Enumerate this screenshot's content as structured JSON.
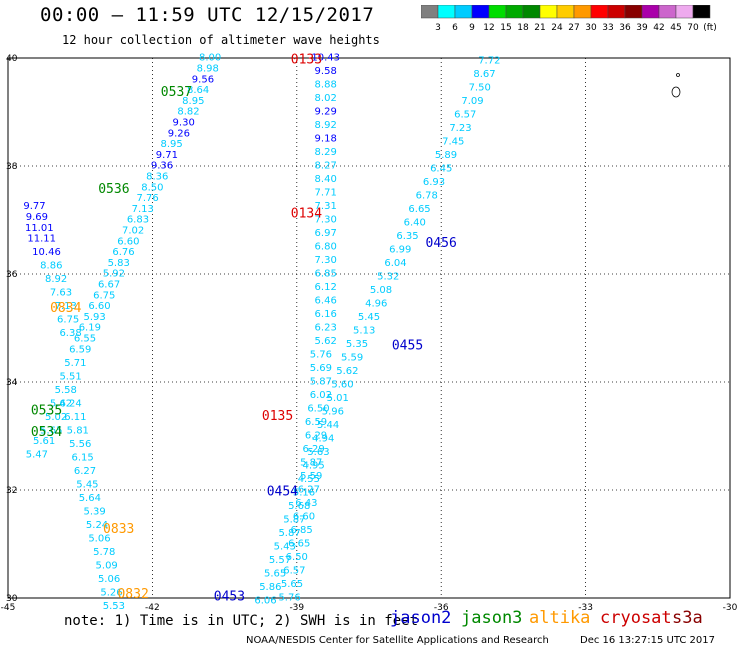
{
  "title": "00:00 – 11:59 UTC 12/15/2017",
  "subtitle": "12 hour collection of altimeter wave heights",
  "note": "note: 1) Time is in UTC; 2) SWH is in feet",
  "credit": "NOAA/NESDIS Center for Satellite Applications and Research",
  "timestamp": "Dec 16 13:27:15 UTC 2017",
  "satellites": [
    {
      "name": "jason2",
      "color": "#0000cc"
    },
    {
      "name": "jason3",
      "color": "#008800"
    },
    {
      "name": "altika",
      "color": "#ff9900"
    },
    {
      "name": "cryosat",
      "color": "#cc0000"
    },
    {
      "name": "s3a",
      "color": "#880000"
    }
  ],
  "legend": {
    "colors": [
      "#808080",
      "#00ffff",
      "#00ccff",
      "#0000ff",
      "#00dd00",
      "#00aa00",
      "#008800",
      "#ffff00",
      "#ffcc00",
      "#ff9900",
      "#ff0000",
      "#cc0000",
      "#880000",
      "#aa00aa",
      "#cc66cc",
      "#eeaaee",
      "#000000"
    ],
    "labels": [
      "3",
      "6",
      "9",
      "12",
      "15",
      "18",
      "21",
      "24",
      "27",
      "30",
      "33",
      "36",
      "39",
      "42",
      "45",
      "70",
      "(ft)"
    ]
  },
  "chart_data": {
    "type": "scatter",
    "xlim": [
      -45,
      -30
    ],
    "ylim": [
      30,
      40
    ],
    "xticks": [
      "-45",
      "-42",
      "-39",
      "-36",
      "-33",
      "-30"
    ],
    "yticks": [
      "30",
      "32",
      "34",
      "36",
      "38",
      "40"
    ],
    "grid": true,
    "legend_position": "top-right",
    "tracks": [
      {
        "label": "0133",
        "lon": -38.8,
        "lat": 39.9,
        "satellite": "cryosat",
        "label_color": "#dd0000"
      },
      {
        "label": "0134",
        "lon": -38.8,
        "lat": 37.05,
        "satellite": "cryosat",
        "label_color": "#dd0000"
      },
      {
        "label": "0135",
        "lon": -39.4,
        "lat": 33.3,
        "satellite": "cryosat",
        "label_color": "#dd0000"
      },
      {
        "label": "0537",
        "lon": -41.5,
        "lat": 39.3,
        "satellite": "jason3",
        "label_color": "#008800"
      },
      {
        "label": "0536",
        "lon": -42.8,
        "lat": 37.5,
        "satellite": "jason3",
        "label_color": "#008800"
      },
      {
        "label": "0535",
        "lon": -44.2,
        "lat": 33.4,
        "satellite": "jason3",
        "label_color": "#008800"
      },
      {
        "label": "0534",
        "lon": -44.2,
        "lat": 33.0,
        "satellite": "jason3",
        "label_color": "#008800"
      },
      {
        "label": "0834",
        "lon": -43.8,
        "lat": 35.3,
        "satellite": "altika",
        "label_color": "#ff9900"
      },
      {
        "label": "0833",
        "lon": -42.7,
        "lat": 31.2,
        "satellite": "altika",
        "label_color": "#ff9900"
      },
      {
        "label": "0832",
        "lon": -42.4,
        "lat": 30.0,
        "satellite": "altika",
        "label_color": "#ff9900"
      },
      {
        "label": "0456",
        "lon": -36.0,
        "lat": 36.5,
        "satellite": "jason2",
        "label_color": "#0000cc"
      },
      {
        "label": "0455",
        "lon": -36.7,
        "lat": 34.6,
        "satellite": "jason2",
        "label_color": "#0000cc"
      },
      {
        "label": "0454",
        "lon": -39.3,
        "lat": 31.9,
        "satellite": "jason2",
        "label_color": "#0000cc"
      },
      {
        "label": "0453",
        "lon": -40.4,
        "lat": 29.95,
        "satellite": "jason2",
        "label_color": "#0000cc"
      }
    ],
    "points": [
      {
        "lon": -38.4,
        "lat": 39.95,
        "v": "10.43",
        "c": "#0000ff"
      },
      {
        "lon": -38.4,
        "lat": 39.7,
        "v": "9.58",
        "c": "#0000ff"
      },
      {
        "lon": -38.4,
        "lat": 39.45,
        "v": "8.88",
        "c": "#00ccff"
      },
      {
        "lon": -38.4,
        "lat": 39.2,
        "v": "8.02",
        "c": "#00ccff"
      },
      {
        "lon": -38.4,
        "lat": 38.95,
        "v": "9.29",
        "c": "#0000ff"
      },
      {
        "lon": -38.4,
        "lat": 38.7,
        "v": "8.92",
        "c": "#00ccff"
      },
      {
        "lon": -38.4,
        "lat": 38.45,
        "v": "9.18",
        "c": "#0000ff"
      },
      {
        "lon": -38.4,
        "lat": 38.2,
        "v": "8.29",
        "c": "#00ccff"
      },
      {
        "lon": -38.4,
        "lat": 37.95,
        "v": "8.27",
        "c": "#00ccff"
      },
      {
        "lon": -38.4,
        "lat": 37.7,
        "v": "8.40",
        "c": "#00ccff"
      },
      {
        "lon": -38.4,
        "lat": 37.45,
        "v": "7.71",
        "c": "#00ccff"
      },
      {
        "lon": -38.4,
        "lat": 37.2,
        "v": "7.31",
        "c": "#00ccff"
      },
      {
        "lon": -38.4,
        "lat": 36.95,
        "v": "7.30",
        "c": "#00ccff"
      },
      {
        "lon": -38.4,
        "lat": 36.7,
        "v": "6.97",
        "c": "#00ccff"
      },
      {
        "lon": -38.4,
        "lat": 36.45,
        "v": "6.80",
        "c": "#00ccff"
      },
      {
        "lon": -38.4,
        "lat": 36.2,
        "v": "7.30",
        "c": "#00ccff"
      },
      {
        "lon": -38.4,
        "lat": 35.95,
        "v": "6.85",
        "c": "#00ccff"
      },
      {
        "lon": -38.4,
        "lat": 35.7,
        "v": "6.12",
        "c": "#00ccff"
      },
      {
        "lon": -38.4,
        "lat": 35.45,
        "v": "6.46",
        "c": "#00ccff"
      },
      {
        "lon": -38.4,
        "lat": 35.2,
        "v": "6.16",
        "c": "#00ccff"
      },
      {
        "lon": -38.4,
        "lat": 34.95,
        "v": "6.23",
        "c": "#00ccff"
      },
      {
        "lon": -38.4,
        "lat": 34.7,
        "v": "5.62",
        "c": "#00ccff"
      },
      {
        "lon": -38.5,
        "lat": 34.45,
        "v": "5.76",
        "c": "#00ccff"
      },
      {
        "lon": -38.5,
        "lat": 34.2,
        "v": "5.69",
        "c": "#00ccff"
      },
      {
        "lon": -38.5,
        "lat": 33.95,
        "v": "5.87",
        "c": "#00ccff"
      },
      {
        "lon": -38.5,
        "lat": 33.7,
        "v": "6.02",
        "c": "#00ccff"
      },
      {
        "lon": -38.55,
        "lat": 33.45,
        "v": "6.50",
        "c": "#00ccff"
      },
      {
        "lon": -38.6,
        "lat": 33.2,
        "v": "6.59",
        "c": "#00ccff"
      },
      {
        "lon": -38.6,
        "lat": 32.95,
        "v": "6.29",
        "c": "#00ccff"
      },
      {
        "lon": -38.65,
        "lat": 32.7,
        "v": "6.29",
        "c": "#00ccff"
      },
      {
        "lon": -38.7,
        "lat": 32.45,
        "v": "5.87",
        "c": "#00ccff"
      },
      {
        "lon": -38.7,
        "lat": 32.2,
        "v": "5.59",
        "c": "#00ccff"
      },
      {
        "lon": -38.75,
        "lat": 31.95,
        "v": "6.27",
        "c": "#00ccff"
      },
      {
        "lon": -38.8,
        "lat": 31.7,
        "v": "6.43",
        "c": "#00ccff"
      },
      {
        "lon": -38.85,
        "lat": 31.45,
        "v": "6.60",
        "c": "#00ccff"
      },
      {
        "lon": -38.9,
        "lat": 31.2,
        "v": "6.85",
        "c": "#00ccff"
      },
      {
        "lon": -38.95,
        "lat": 30.95,
        "v": "6.65",
        "c": "#00ccff"
      },
      {
        "lon": -39.0,
        "lat": 30.7,
        "v": "6.50",
        "c": "#00ccff"
      },
      {
        "lon": -39.05,
        "lat": 30.45,
        "v": "6.57",
        "c": "#00ccff"
      },
      {
        "lon": -39.1,
        "lat": 30.2,
        "v": "5.65",
        "c": "#00ccff"
      },
      {
        "lon": -39.15,
        "lat": 29.95,
        "v": "5.76",
        "c": "#00ccff"
      },
      {
        "lon": -40.8,
        "lat": 39.95,
        "v": "8.00",
        "c": "#00ccff"
      },
      {
        "lon": -40.85,
        "lat": 39.75,
        "v": "8.98",
        "c": "#00ccff"
      },
      {
        "lon": -40.95,
        "lat": 39.55,
        "v": "9.56",
        "c": "#0000ff"
      },
      {
        "lon": -41.05,
        "lat": 39.35,
        "v": "8.64",
        "c": "#00ccff"
      },
      {
        "lon": -41.15,
        "lat": 39.15,
        "v": "8.95",
        "c": "#00ccff"
      },
      {
        "lon": -41.25,
        "lat": 38.95,
        "v": "8.82",
        "c": "#00ccff"
      },
      {
        "lon": -41.35,
        "lat": 38.75,
        "v": "9.30",
        "c": "#0000ff"
      },
      {
        "lon": -41.45,
        "lat": 38.55,
        "v": "9.26",
        "c": "#0000ff"
      },
      {
        "lon": -41.6,
        "lat": 38.35,
        "v": "8.95",
        "c": "#00ccff"
      },
      {
        "lon": -41.7,
        "lat": 38.15,
        "v": "9.71",
        "c": "#0000ff"
      },
      {
        "lon": -41.8,
        "lat": 37.95,
        "v": "9.36",
        "c": "#0000ff"
      },
      {
        "lon": -41.9,
        "lat": 37.75,
        "v": "8.36",
        "c": "#00ccff"
      },
      {
        "lon": -42.0,
        "lat": 37.55,
        "v": "8.50",
        "c": "#00ccff"
      },
      {
        "lon": -42.1,
        "lat": 37.35,
        "v": "7.76",
        "c": "#00ccff"
      },
      {
        "lon": -42.2,
        "lat": 37.15,
        "v": "7.13",
        "c": "#00ccff"
      },
      {
        "lon": -42.3,
        "lat": 36.95,
        "v": "6.83",
        "c": "#00ccff"
      },
      {
        "lon": -42.4,
        "lat": 36.75,
        "v": "7.02",
        "c": "#00ccff"
      },
      {
        "lon": -42.5,
        "lat": 36.55,
        "v": "6.60",
        "c": "#00ccff"
      },
      {
        "lon": -42.6,
        "lat": 36.35,
        "v": "6.76",
        "c": "#00ccff"
      },
      {
        "lon": -42.7,
        "lat": 36.15,
        "v": "5.83",
        "c": "#00ccff"
      },
      {
        "lon": -42.8,
        "lat": 35.95,
        "v": "5.92",
        "c": "#00ccff"
      },
      {
        "lon": -42.9,
        "lat": 35.75,
        "v": "6.67",
        "c": "#00ccff"
      },
      {
        "lon": -43.0,
        "lat": 35.55,
        "v": "6.75",
        "c": "#00ccff"
      },
      {
        "lon": -43.1,
        "lat": 35.35,
        "v": "6.60",
        "c": "#00ccff"
      },
      {
        "lon": -43.2,
        "lat": 35.15,
        "v": "5.93",
        "c": "#00ccff"
      },
      {
        "lon": -43.3,
        "lat": 34.95,
        "v": "6.19",
        "c": "#00ccff"
      },
      {
        "lon": -43.4,
        "lat": 34.75,
        "v": "6.55",
        "c": "#00ccff"
      },
      {
        "lon": -44.45,
        "lat": 37.2,
        "v": "9.77",
        "c": "#0000ff"
      },
      {
        "lon": -44.4,
        "lat": 37.0,
        "v": "9.69",
        "c": "#0000ff"
      },
      {
        "lon": -44.35,
        "lat": 36.8,
        "v": "11.01",
        "c": "#0000ff"
      },
      {
        "lon": -44.3,
        "lat": 36.6,
        "v": "11.11",
        "c": "#0000ff"
      },
      {
        "lon": -44.2,
        "lat": 36.35,
        "v": "10.46",
        "c": "#0000ff"
      },
      {
        "lon": -44.1,
        "lat": 36.1,
        "v": "8.86",
        "c": "#00ccff"
      },
      {
        "lon": -44.0,
        "lat": 35.85,
        "v": "8.92",
        "c": "#00ccff"
      },
      {
        "lon": -43.9,
        "lat": 35.6,
        "v": "7.63",
        "c": "#00ccff"
      },
      {
        "lon": -43.8,
        "lat": 35.35,
        "v": "7.13",
        "c": "#00ccff"
      },
      {
        "lon": -43.75,
        "lat": 35.1,
        "v": "6.75",
        "c": "#00ccff"
      },
      {
        "lon": -43.7,
        "lat": 34.85,
        "v": "6.38",
        "c": "#00ccff"
      },
      {
        "lon": -43.5,
        "lat": 34.55,
        "v": "6.59",
        "c": "#00ccff"
      },
      {
        "lon": -43.6,
        "lat": 34.3,
        "v": "5.71",
        "c": "#00ccff"
      },
      {
        "lon": -43.7,
        "lat": 34.05,
        "v": "5.51",
        "c": "#00ccff"
      },
      {
        "lon": -43.8,
        "lat": 33.8,
        "v": "5.58",
        "c": "#00ccff"
      },
      {
        "lon": -43.9,
        "lat": 33.55,
        "v": "5.42",
        "c": "#00ccff"
      },
      {
        "lon": -44.0,
        "lat": 33.3,
        "v": "5.02",
        "c": "#00ccff"
      },
      {
        "lon": -44.1,
        "lat": 33.05,
        "v": "5.65",
        "c": "#00ccff"
      },
      {
        "lon": -44.25,
        "lat": 32.85,
        "v": "5.61",
        "c": "#00ccff"
      },
      {
        "lon": -44.4,
        "lat": 32.6,
        "v": "5.47",
        "c": "#00ccff"
      },
      {
        "lon": -43.7,
        "lat": 33.55,
        "v": "6.24",
        "c": "#00ccff"
      },
      {
        "lon": -43.6,
        "lat": 33.3,
        "v": "6.11",
        "c": "#00ccff"
      },
      {
        "lon": -43.55,
        "lat": 33.05,
        "v": "5.81",
        "c": "#00ccff"
      },
      {
        "lon": -43.5,
        "lat": 32.8,
        "v": "5.56",
        "c": "#00ccff"
      },
      {
        "lon": -43.45,
        "lat": 32.55,
        "v": "6.15",
        "c": "#00ccff"
      },
      {
        "lon": -43.4,
        "lat": 32.3,
        "v": "6.27",
        "c": "#00ccff"
      },
      {
        "lon": -43.35,
        "lat": 32.05,
        "v": "5.45",
        "c": "#00ccff"
      },
      {
        "lon": -43.3,
        "lat": 31.8,
        "v": "5.64",
        "c": "#00ccff"
      },
      {
        "lon": -43.2,
        "lat": 31.55,
        "v": "5.39",
        "c": "#00ccff"
      },
      {
        "lon": -43.15,
        "lat": 31.3,
        "v": "5.24",
        "c": "#00ccff"
      },
      {
        "lon": -43.1,
        "lat": 31.05,
        "v": "5.06",
        "c": "#00ccff"
      },
      {
        "lon": -43.0,
        "lat": 30.8,
        "v": "5.78",
        "c": "#00ccff"
      },
      {
        "lon": -42.95,
        "lat": 30.55,
        "v": "5.09",
        "c": "#00ccff"
      },
      {
        "lon": -42.9,
        "lat": 30.3,
        "v": "5.06",
        "c": "#00ccff"
      },
      {
        "lon": -42.85,
        "lat": 30.05,
        "v": "5.26",
        "c": "#00ccff"
      },
      {
        "lon": -42.8,
        "lat": 29.8,
        "v": "5.53",
        "c": "#00ccff"
      },
      {
        "lon": -35.0,
        "lat": 39.9,
        "v": "7.72",
        "c": "#00ccff"
      },
      {
        "lon": -35.1,
        "lat": 39.65,
        "v": "8.67",
        "c": "#00ccff"
      },
      {
        "lon": -35.2,
        "lat": 39.4,
        "v": "7.50",
        "c": "#00ccff"
      },
      {
        "lon": -35.35,
        "lat": 39.15,
        "v": "7.09",
        "c": "#00ccff"
      },
      {
        "lon": -35.5,
        "lat": 38.9,
        "v": "6.57",
        "c": "#00ccff"
      },
      {
        "lon": -35.6,
        "lat": 38.65,
        "v": "7.23",
        "c": "#00ccff"
      },
      {
        "lon": -35.75,
        "lat": 38.4,
        "v": "7.45",
        "c": "#00ccff"
      },
      {
        "lon": -35.9,
        "lat": 38.15,
        "v": "5.89",
        "c": "#00ccff"
      },
      {
        "lon": -36.0,
        "lat": 37.9,
        "v": "6.45",
        "c": "#00ccff"
      },
      {
        "lon": -36.15,
        "lat": 37.65,
        "v": "6.93",
        "c": "#00ccff"
      },
      {
        "lon": -36.3,
        "lat": 37.4,
        "v": "6.78",
        "c": "#00ccff"
      },
      {
        "lon": -36.45,
        "lat": 37.15,
        "v": "6.65",
        "c": "#00ccff"
      },
      {
        "lon": -36.55,
        "lat": 36.9,
        "v": "6.40",
        "c": "#00ccff"
      },
      {
        "lon": -36.7,
        "lat": 36.65,
        "v": "6.35",
        "c": "#00ccff"
      },
      {
        "lon": -36.85,
        "lat": 36.4,
        "v": "6.99",
        "c": "#00ccff"
      },
      {
        "lon": -36.95,
        "lat": 36.15,
        "v": "6.04",
        "c": "#00ccff"
      },
      {
        "lon": -37.1,
        "lat": 35.9,
        "v": "5.32",
        "c": "#00ccff"
      },
      {
        "lon": -37.25,
        "lat": 35.65,
        "v": "5.08",
        "c": "#00ccff"
      },
      {
        "lon": -37.35,
        "lat": 35.4,
        "v": "4.96",
        "c": "#00ccff"
      },
      {
        "lon": -37.5,
        "lat": 35.15,
        "v": "5.45",
        "c": "#00ccff"
      },
      {
        "lon": -37.6,
        "lat": 34.9,
        "v": "5.13",
        "c": "#00ccff"
      },
      {
        "lon": -37.75,
        "lat": 34.65,
        "v": "5.35",
        "c": "#00ccff"
      },
      {
        "lon": -37.85,
        "lat": 34.4,
        "v": "5.59",
        "c": "#00ccff"
      },
      {
        "lon": -37.95,
        "lat": 34.15,
        "v": "5.62",
        "c": "#00ccff"
      },
      {
        "lon": -38.05,
        "lat": 33.9,
        "v": "5.60",
        "c": "#00ccff"
      },
      {
        "lon": -38.15,
        "lat": 33.65,
        "v": "5.01",
        "c": "#00ccff"
      },
      {
        "lon": -38.25,
        "lat": 33.4,
        "v": "5.96",
        "c": "#00ccff"
      },
      {
        "lon": -38.35,
        "lat": 33.15,
        "v": "5.44",
        "c": "#00ccff"
      },
      {
        "lon": -38.45,
        "lat": 32.9,
        "v": "4.94",
        "c": "#00ccff"
      },
      {
        "lon": -38.55,
        "lat": 32.65,
        "v": "5.63",
        "c": "#00ccff"
      },
      {
        "lon": -38.65,
        "lat": 32.4,
        "v": "4.95",
        "c": "#00ccff"
      },
      {
        "lon": -38.75,
        "lat": 32.15,
        "v": "4.55",
        "c": "#00ccff"
      },
      {
        "lon": -38.85,
        "lat": 31.9,
        "v": "5.16",
        "c": "#00ccff"
      },
      {
        "lon": -38.95,
        "lat": 31.65,
        "v": "5.68",
        "c": "#00ccff"
      },
      {
        "lon": -39.05,
        "lat": 31.4,
        "v": "5.87",
        "c": "#00ccff"
      },
      {
        "lon": -39.15,
        "lat": 31.15,
        "v": "5.87",
        "c": "#00ccff"
      },
      {
        "lon": -39.25,
        "lat": 30.9,
        "v": "5.43",
        "c": "#00ccff"
      },
      {
        "lon": -39.35,
        "lat": 30.65,
        "v": "5.57",
        "c": "#00ccff"
      },
      {
        "lon": -39.45,
        "lat": 30.4,
        "v": "5.65",
        "c": "#00ccff"
      },
      {
        "lon": -39.55,
        "lat": 30.15,
        "v": "5.86",
        "c": "#00ccff"
      },
      {
        "lon": -39.65,
        "lat": 29.9,
        "v": "6.06",
        "c": "#00ccff"
      }
    ]
  }
}
